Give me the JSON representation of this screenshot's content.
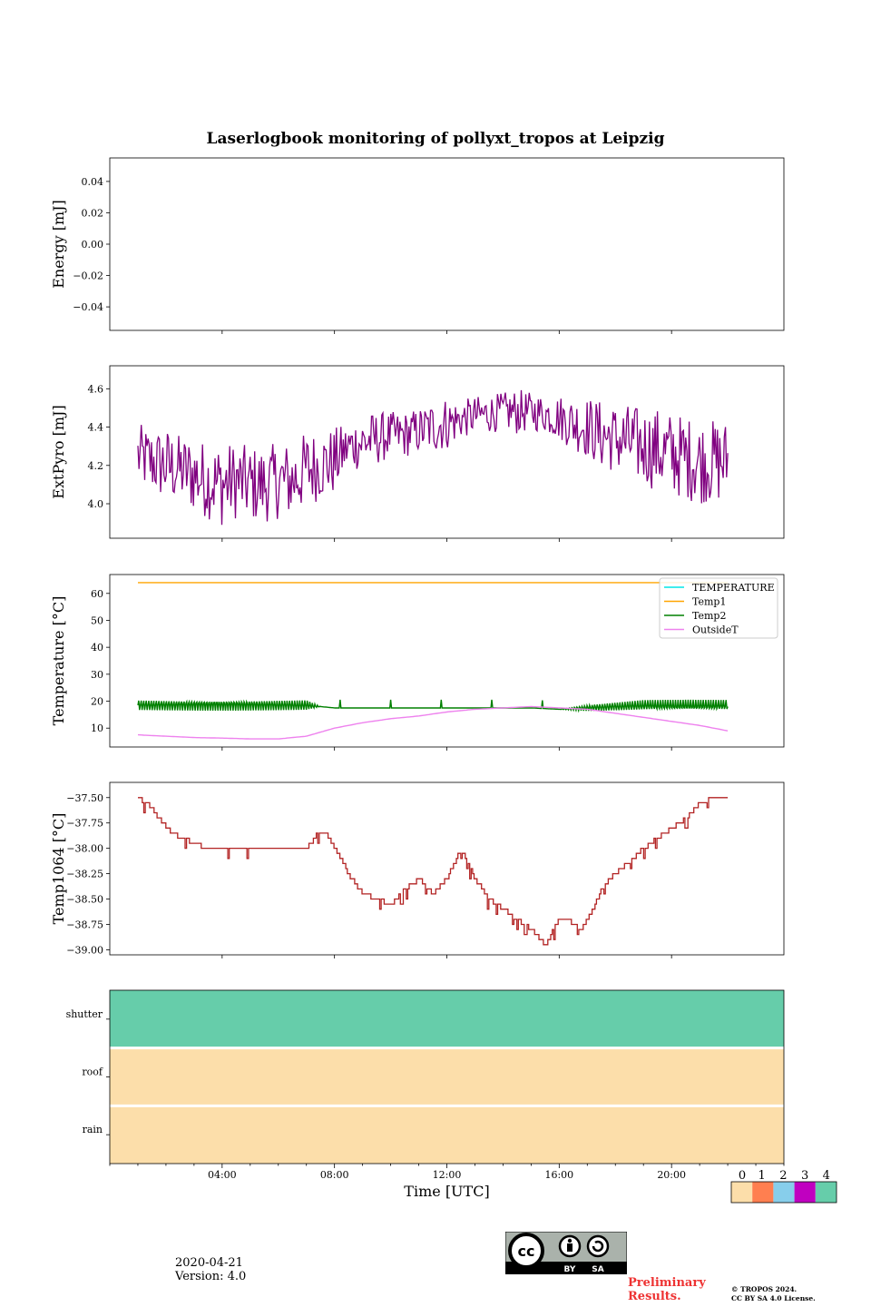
{
  "chart_data": [
    {
      "type": "line",
      "panel": "energy",
      "title": "Laserlogbook monitoring of pollyxt_tropos at Leipzig",
      "ylabel": "Energy [mJ]",
      "ylim": [
        -0.055,
        0.055
      ],
      "yticks": [
        0.04,
        0.02,
        0.0,
        -0.02,
        -0.04
      ],
      "ytick_labels": [
        "0.04",
        "0.02",
        "0.00",
        "−0.02",
        "−0.04"
      ],
      "series": []
    },
    {
      "type": "line",
      "panel": "extpyro",
      "ylabel": "ExtPyro [mJ]",
      "ylim": [
        3.82,
        4.72
      ],
      "yticks": [
        4.6,
        4.4,
        4.2,
        4.0
      ],
      "ytick_labels": [
        "4.6",
        "4.4",
        "4.2",
        "4.0"
      ],
      "series": [
        {
          "name": "ExtPyro",
          "color": "#800080",
          "x": [
            1.0,
            1.5,
            2.0,
            2.5,
            3.0,
            3.5,
            4.0,
            4.5,
            5.0,
            5.5,
            6.0,
            6.5,
            7.0,
            7.5,
            8.0,
            8.5,
            9.0,
            9.5,
            10.0,
            10.5,
            11.0,
            11.5,
            12.0,
            12.5,
            13.0,
            13.5,
            14.0,
            14.5,
            15.0,
            15.5,
            16.0,
            16.5,
            17.0,
            17.5,
            18.0,
            18.5,
            19.0,
            19.5,
            20.0,
            20.5,
            21.0,
            21.5,
            22.0
          ],
          "values": [
            4.25,
            4.22,
            4.2,
            4.18,
            4.15,
            4.12,
            4.1,
            4.12,
            4.1,
            4.1,
            4.12,
            4.12,
            4.18,
            4.2,
            4.22,
            4.3,
            4.32,
            4.34,
            4.36,
            4.36,
            4.38,
            4.4,
            4.42,
            4.44,
            4.46,
            4.47,
            4.48,
            4.48,
            4.48,
            4.47,
            4.45,
            4.42,
            4.4,
            4.36,
            4.34,
            4.32,
            4.3,
            4.28,
            4.26,
            4.24,
            4.22,
            4.22,
            4.22
          ],
          "amplitude": [
            0.17,
            0.17,
            0.2,
            0.18,
            0.2,
            0.2,
            0.22,
            0.2,
            0.2,
            0.2,
            0.2,
            0.2,
            0.2,
            0.18,
            0.18,
            0.12,
            0.15,
            0.14,
            0.12,
            0.12,
            0.12,
            0.14,
            0.14,
            0.1,
            0.1,
            0.1,
            0.1,
            0.12,
            0.1,
            0.1,
            0.12,
            0.14,
            0.16,
            0.18,
            0.18,
            0.2,
            0.2,
            0.22,
            0.22,
            0.22,
            0.22,
            0.22,
            0.22
          ]
        }
      ]
    },
    {
      "type": "line",
      "panel": "temperature",
      "ylabel": "Temperature [°C]",
      "ylim": [
        3,
        67
      ],
      "yticks": [
        60,
        50,
        40,
        30,
        20,
        10
      ],
      "ytick_labels": [
        "60",
        "50",
        "40",
        "30",
        "20",
        "10"
      ],
      "legend": "top-right",
      "series": [
        {
          "name": "TEMPERATURE",
          "color": "#00e5e5",
          "x": [],
          "values": []
        },
        {
          "name": "Temp1",
          "color": "#ffa500",
          "x": [
            1.0,
            22.0
          ],
          "values": [
            64,
            64
          ]
        },
        {
          "name": "Temp2",
          "color": "#008000",
          "x": [
            1.0,
            2.0,
            3.0,
            4.0,
            5.0,
            6.0,
            7.0,
            7.5,
            8.0,
            9.0,
            10.0,
            11.0,
            12.0,
            13.0,
            14.0,
            15.0,
            16.0,
            17.0,
            18.0,
            19.0,
            20.0,
            21.0,
            22.0
          ],
          "values": [
            18.5,
            18.5,
            18.5,
            18.5,
            18.5,
            18.5,
            18.5,
            18.0,
            17.5,
            17.5,
            17.5,
            17.5,
            17.5,
            17.5,
            17.5,
            17.5,
            17.0,
            17.5,
            18.0,
            18.5,
            18.5,
            18.5,
            18.5
          ],
          "oscillation_amplitude": [
            2.5,
            2.5,
            2.5,
            2.5,
            2.5,
            2.5,
            2.5,
            0,
            0,
            0,
            0,
            0,
            0,
            0,
            0,
            0,
            0,
            1.5,
            2.0,
            2.5,
            2.5,
            2.5,
            2.5
          ]
        },
        {
          "name": "OutsideT",
          "color": "#ee82ee",
          "x": [
            1.0,
            2.0,
            3.0,
            4.0,
            5.0,
            6.0,
            7.0,
            8.0,
            9.0,
            10.0,
            11.0,
            12.0,
            13.0,
            14.0,
            15.0,
            16.0,
            17.0,
            18.0,
            19.0,
            20.0,
            21.0,
            22.0
          ],
          "values": [
            7.5,
            7.0,
            6.5,
            6.3,
            6.0,
            6.0,
            7.0,
            10.0,
            12.0,
            13.5,
            14.5,
            16.0,
            17.0,
            17.5,
            18.0,
            17.5,
            17.0,
            15.5,
            14.0,
            12.5,
            11.0,
            9.0
          ]
        }
      ]
    },
    {
      "type": "line",
      "panel": "temp1064",
      "ylabel": "Temp1064 [°C]",
      "ylim": [
        -39.05,
        -37.35
      ],
      "yticks": [
        -37.5,
        -37.75,
        -38.0,
        -38.25,
        -38.5,
        -38.75,
        -39.0
      ],
      "ytick_labels": [
        "−37.50",
        "−37.75",
        "−38.00",
        "−38.25",
        "−38.50",
        "−38.75",
        "−39.00"
      ],
      "series": [
        {
          "name": "Temp1064",
          "color": "#b22222",
          "x": [
            1.0,
            1.3,
            1.6,
            1.9,
            2.2,
            2.6,
            3.0,
            3.5,
            4.0,
            5.0,
            6.0,
            7.0,
            7.4,
            7.7,
            8.0,
            8.3,
            8.6,
            9.0,
            9.5,
            10.0,
            10.5,
            11.0,
            11.5,
            12.0,
            12.5,
            13.0,
            13.5,
            14.0,
            14.5,
            15.0,
            15.5,
            16.0,
            16.3,
            16.8,
            17.2,
            17.5,
            17.8,
            18.2,
            18.6,
            19.0,
            19.5,
            20.0,
            20.5,
            21.0,
            21.5,
            22.0
          ],
          "values": [
            -37.5,
            -37.55,
            -37.65,
            -37.75,
            -37.85,
            -37.9,
            -37.95,
            -38.0,
            -38.0,
            -38.0,
            -38.0,
            -38.0,
            -37.85,
            -37.85,
            -38.0,
            -38.15,
            -38.3,
            -38.45,
            -38.5,
            -38.55,
            -38.4,
            -38.3,
            -38.45,
            -38.3,
            -38.0,
            -38.3,
            -38.5,
            -38.6,
            -38.7,
            -38.8,
            -38.95,
            -38.7,
            -38.7,
            -38.8,
            -38.6,
            -38.4,
            -38.3,
            -38.2,
            -38.1,
            -38.0,
            -37.9,
            -37.8,
            -37.7,
            -37.55,
            -37.5,
            -37.5
          ]
        }
      ]
    },
    {
      "type": "heatmap",
      "panel": "status",
      "xlabel": "Time [UTC]",
      "xlim": [
        0,
        24
      ],
      "xticks": [
        4,
        8,
        12,
        16,
        20
      ],
      "xtick_labels": [
        "04:00",
        "08:00",
        "12:00",
        "16:00",
        "20:00"
      ],
      "rows": [
        "shutter",
        "roof",
        "rain"
      ],
      "values": [
        4,
        0,
        0
      ],
      "colorbar": {
        "ticks": [
          "0",
          "1",
          "2",
          "3",
          "4"
        ],
        "colors": [
          "#fcdeaa",
          "#ff7f50",
          "#87ceeb",
          "#c000c0",
          "#66cdaa"
        ]
      }
    }
  ],
  "footer": {
    "date": "2020-04-21",
    "version": "Version: 4.0",
    "preliminary_line1": "Preliminary",
    "preliminary_line2": "Results.",
    "copyright_line1": "© TROPOS 2024.",
    "copyright_line2": "CC BY SA 4.0 License.",
    "cc_label": "cc",
    "by_label": "BY",
    "sa_label": "SA"
  }
}
